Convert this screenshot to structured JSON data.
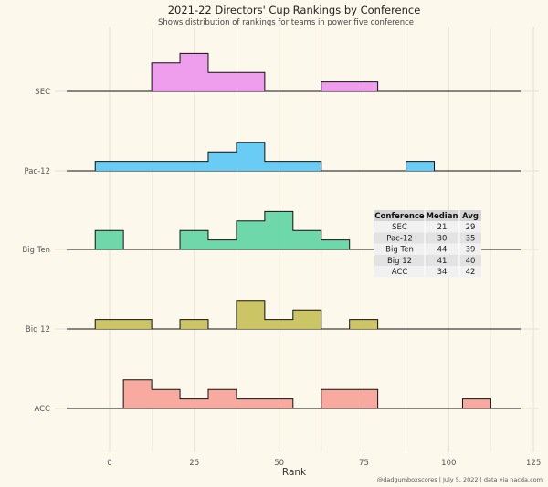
{
  "chart_data": {
    "type": "histogram-ridgeline",
    "title": "2021-22 Directors' Cup Rankings by Conference",
    "subtitle": "Shows distribution of rankings for teams in power five conference",
    "xlabel": "Rank",
    "caption": "@dadgumboxscores | July 5, 2022 | data via nacda.com",
    "xlim": [
      -12,
      125
    ],
    "xticks": [
      0,
      25,
      50,
      75,
      100,
      125
    ],
    "grid": true,
    "bin_edges": [
      -12,
      -4.25,
      4.08,
      12.42,
      20.75,
      29.08,
      37.42,
      45.75,
      54.08,
      62.42,
      70.75,
      79.08,
      87.42,
      95.75,
      104.08,
      112.42,
      120.75
    ],
    "series": [
      {
        "name": "SEC",
        "color": "#ee99ee",
        "counts": [
          0,
          0,
          0,
          3,
          4,
          2,
          2,
          0,
          0,
          1,
          1,
          0,
          0,
          0,
          0,
          0
        ]
      },
      {
        "name": "Pac-12",
        "color": "#61c9f5",
        "counts": [
          0,
          1,
          1,
          1,
          1,
          2,
          3,
          1,
          1,
          0,
          0,
          0,
          1,
          0,
          0,
          0
        ]
      },
      {
        "name": "Big Ten",
        "color": "#66d6a6",
        "counts": [
          0,
          2,
          0,
          0,
          2,
          1,
          3,
          4,
          2,
          1,
          0,
          0,
          0,
          0,
          0,
          0
        ]
      },
      {
        "name": "Big 12",
        "color": "#c9c25f",
        "counts": [
          0,
          1,
          1,
          0,
          1,
          0,
          3,
          1,
          2,
          0,
          1,
          0,
          0,
          0,
          0,
          0
        ]
      },
      {
        "name": "ACC",
        "color": "#f8a59d",
        "counts": [
          0,
          0,
          3,
          2,
          1,
          2,
          1,
          1,
          0,
          2,
          2,
          0,
          0,
          0,
          1,
          0
        ]
      }
    ],
    "table": {
      "headers": [
        "Conference",
        "Median",
        "Avg"
      ],
      "rows": [
        [
          "SEC",
          "21",
          "29"
        ],
        [
          "Pac-12",
          "30",
          "35"
        ],
        [
          "Big Ten",
          "44",
          "39"
        ],
        [
          "Big 12",
          "41",
          "40"
        ],
        [
          "ACC",
          "34",
          "42"
        ]
      ]
    }
  }
}
